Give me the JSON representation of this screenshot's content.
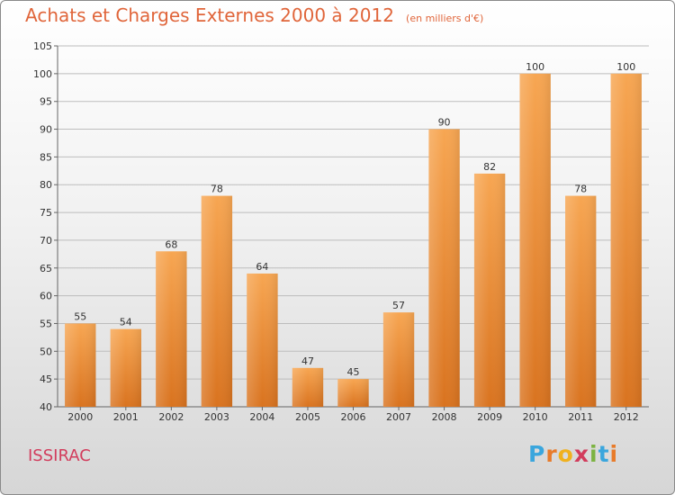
{
  "chart_data": {
    "type": "bar",
    "title": "Achats et Charges Externes 2000 à 2012",
    "subtitle": "(en milliers d'€)",
    "categories": [
      "2000",
      "2001",
      "2002",
      "2003",
      "2004",
      "2005",
      "2006",
      "2007",
      "2008",
      "2009",
      "2010",
      "2011",
      "2012"
    ],
    "values": [
      55,
      54,
      68,
      78,
      64,
      47,
      45,
      57,
      90,
      82,
      100,
      78,
      100
    ],
    "ylim": [
      40,
      105
    ],
    "yticks": [
      40,
      45,
      50,
      55,
      60,
      65,
      70,
      75,
      80,
      85,
      90,
      95,
      100,
      105
    ],
    "grid": true,
    "colors": {
      "bar_top": "#f7a652",
      "bar_bottom": "#d9731f",
      "text": "#333333",
      "title": "#e0653a"
    }
  },
  "footer": {
    "place": "ISSIRAC",
    "brand": "Proxiti"
  }
}
